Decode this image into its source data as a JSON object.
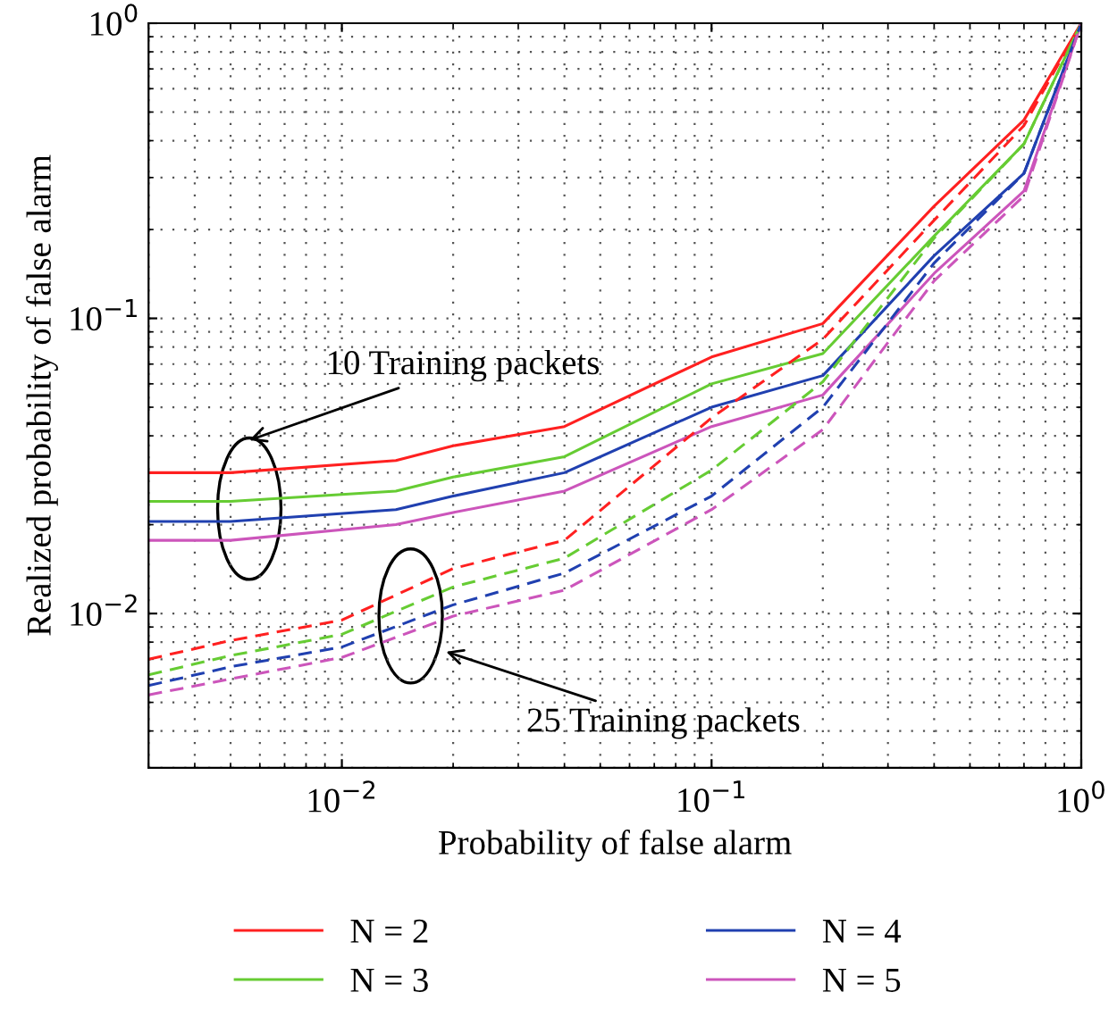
{
  "chart_data": {
    "type": "line",
    "xlabel": "Probability of false alarm",
    "ylabel": "Realized probability of false alarm",
    "x": [
      0.003,
      0.005,
      0.014,
      0.02,
      0.04,
      0.1,
      0.2,
      0.4,
      0.7,
      1
    ],
    "series": [
      {
        "name": "N = 2",
        "color": "#ff2020",
        "line_style": "solid",
        "values": [
          0.03,
          0.03,
          0.033,
          0.037,
          0.043,
          0.074,
          0.096,
          0.24,
          0.47,
          1
        ]
      },
      {
        "name": "N = 3",
        "color": "#66cc33",
        "line_style": "solid",
        "values": [
          0.024,
          0.024,
          0.026,
          0.029,
          0.034,
          0.06,
          0.076,
          0.19,
          0.39,
          1
        ]
      },
      {
        "name": "N = 4",
        "color": "#2040b0",
        "line_style": "solid",
        "values": [
          0.0205,
          0.0205,
          0.0225,
          0.025,
          0.03,
          0.05,
          0.064,
          0.163,
          0.31,
          1
        ]
      },
      {
        "name": "N = 5",
        "color": "#cc55bb",
        "line_style": "solid",
        "values": [
          0.0177,
          0.0177,
          0.02,
          0.022,
          0.026,
          0.043,
          0.055,
          0.142,
          0.27,
          1
        ]
      },
      {
        "color": "#ff2020",
        "line_style": "dashed",
        "x": [
          0.003,
          0.005,
          0.01,
          0.02,
          0.04,
          0.1,
          0.2,
          0.4,
          0.7,
          1
        ],
        "values": [
          0.007,
          0.0081,
          0.0095,
          0.0142,
          0.0177,
          0.046,
          0.085,
          0.215,
          0.45,
          1
        ]
      },
      {
        "color": "#66cc33",
        "line_style": "dashed",
        "x": [
          0.003,
          0.005,
          0.01,
          0.02,
          0.04,
          0.1,
          0.2,
          0.4,
          0.7,
          1
        ],
        "values": [
          0.0062,
          0.0072,
          0.0085,
          0.0123,
          0.0154,
          0.0306,
          0.061,
          0.187,
          0.39,
          1
        ]
      },
      {
        "color": "#2040b0",
        "line_style": "dashed",
        "x": [
          0.003,
          0.005,
          0.01,
          0.02,
          0.04,
          0.1,
          0.2,
          0.4,
          0.7,
          1
        ],
        "values": [
          0.0057,
          0.0066,
          0.0077,
          0.0107,
          0.0137,
          0.025,
          0.05,
          0.154,
          0.31,
          1
        ]
      },
      {
        "color": "#cc55bb",
        "line_style": "dashed",
        "x": [
          0.003,
          0.005,
          0.01,
          0.02,
          0.04,
          0.1,
          0.2,
          0.4,
          0.7,
          1
        ],
        "values": [
          0.0053,
          0.006,
          0.0071,
          0.0098,
          0.012,
          0.0225,
          0.042,
          0.134,
          0.26,
          1
        ]
      }
    ],
    "log": "xy",
    "xlim": [
      0.003,
      1
    ],
    "ylim": [
      0.003,
      1
    ],
    "xticks": [
      {
        "value": 0.01,
        "label": "10$^{−2}$"
      },
      {
        "value": 0.1,
        "label": "10$^{−1}$"
      },
      {
        "value": 1,
        "label": "10$^{0}$"
      }
    ],
    "yticks": [
      {
        "value": 0.01,
        "label": "10$^{−2}$"
      },
      {
        "value": 0.1,
        "label": "10$^{−1}$"
      },
      {
        "value": 1,
        "label": "10$^{0}$"
      }
    ],
    "grid": true,
    "legend": "bottom",
    "annotations": [
      "10 Training packets",
      "25 Training packets"
    ]
  }
}
